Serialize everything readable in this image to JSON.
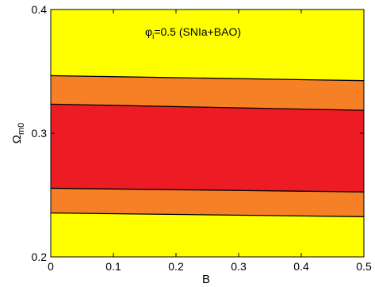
{
  "chart_data": {
    "type": "area",
    "title": "",
    "xlabel": "B",
    "ylabel": "Ω",
    "ylabel_sub": "m0",
    "xlim": [
      0,
      0.5
    ],
    "ylim": [
      0.2,
      0.4
    ],
    "x_ticks": [
      0,
      0.1,
      0.2,
      0.3,
      0.4,
      0.5
    ],
    "x_tick_labels": [
      "0",
      "0.1",
      "0.2",
      "0.3",
      "0.4",
      "0.5"
    ],
    "y_ticks": [
      0.2,
      0.3,
      0.4
    ],
    "y_tick_labels": [
      "0.2",
      "0.3",
      "0.4"
    ],
    "annotation": {
      "phi": "φ",
      "sub": "i",
      "rest": "=0.5 (SNIa+BAO)"
    },
    "colors": {
      "outer_region": "#ffff00",
      "two_sigma": "#f58025",
      "one_sigma": "#ed1c24",
      "contour_line": "#000000"
    },
    "contours": [
      {
        "name": "2σ upper",
        "x": [
          0,
          0.5
        ],
        "y": [
          0.3465,
          0.3425
        ]
      },
      {
        "name": "1σ upper",
        "x": [
          0,
          0.5
        ],
        "y": [
          0.3235,
          0.3185
        ]
      },
      {
        "name": "1σ lower",
        "x": [
          0,
          0.5
        ],
        "y": [
          0.2555,
          0.2525
        ]
      },
      {
        "name": "2σ lower",
        "x": [
          0,
          0.5
        ],
        "y": [
          0.2355,
          0.2325
        ]
      }
    ],
    "grid": false
  }
}
